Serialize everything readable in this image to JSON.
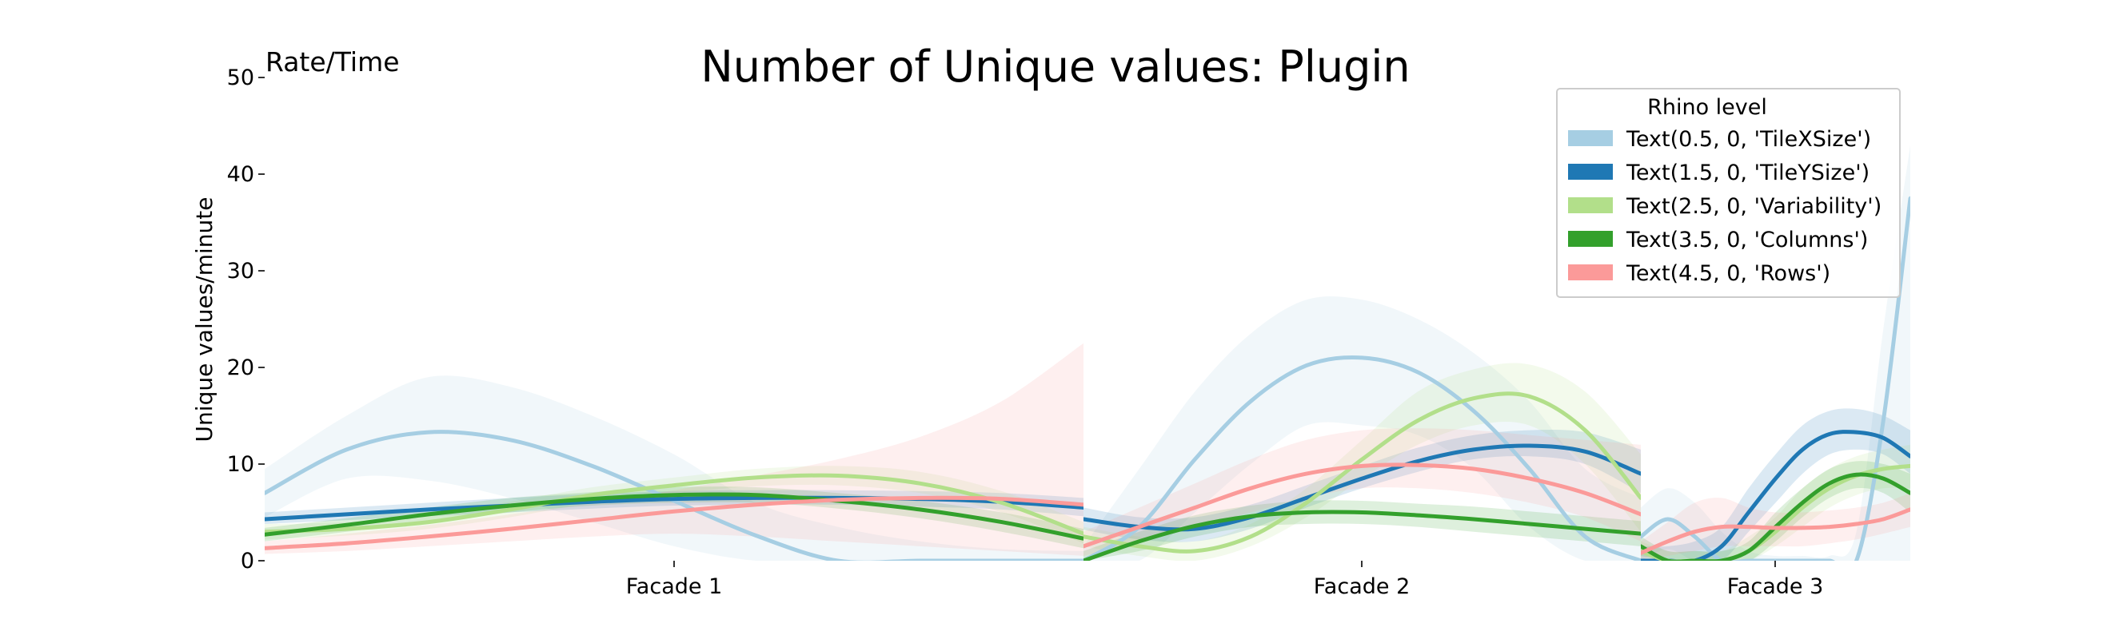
{
  "chart_data": {
    "type": "line",
    "title": "Number of Unique values: Plugin",
    "corner_label": "Rate/Time",
    "xlabel": "",
    "ylabel": "Unique values/minute",
    "ylim": [
      0,
      50
    ],
    "yticks": [
      0,
      10,
      20,
      30,
      40,
      50
    ],
    "x_tick_labels": [
      "Facade 1",
      "Facade 2",
      "Facade 3"
    ],
    "legend": {
      "title": "Rhino level",
      "placement": "top-right"
    },
    "grid": false,
    "note_x_units": "x is position along each facade from 0 (start) to 1 (end)",
    "facades": [
      {
        "name": "Facade 1"
      },
      {
        "name": "Facade 2"
      },
      {
        "name": "Facade 3"
      }
    ],
    "series": [
      {
        "name": "Text(0.5, 0, 'TileXSize')",
        "color": "#a6cee3",
        "segments": [
          {
            "x": [
              0,
              0.1,
              0.2,
              0.3,
              0.4,
              0.5,
              0.6,
              0.7,
              0.8,
              0.9,
              1.0
            ],
            "y": [
              7,
              11.5,
              13.3,
              12.5,
              9.8,
              6.2,
              2.6,
              0,
              0,
              0,
              0
            ],
            "lo": [
              4.5,
              8.5,
              8.3,
              6.5,
              4,
              1.5,
              0,
              0,
              0,
              0,
              0
            ],
            "hi": [
              9.5,
              15,
              19,
              18,
              15,
              11,
              6,
              3.5,
              2,
              1.2,
              1
            ]
          },
          {
            "x": [
              0,
              0.1,
              0.2,
              0.3,
              0.4,
              0.5,
              0.6,
              0.7,
              0.8,
              0.9,
              1.0
            ],
            "y": [
              0,
              3.5,
              10.5,
              16.5,
              20.2,
              21,
              19.5,
              15.5,
              9.5,
              2.5,
              0
            ],
            "lo": [
              0,
              0,
              5,
              10,
              14,
              14,
              13,
              9.5,
              3.5,
              0,
              0
            ],
            "hi": [
              1.5,
              9.5,
              17.5,
              23.5,
              27,
              27,
              25,
              21.5,
              16.5,
              9.5,
              6.5
            ]
          },
          {
            "x": [
              0,
              0.1,
              0.2,
              0.3,
              0.4,
              0.5,
              0.6,
              0.7,
              0.8,
              0.9,
              1.0
            ],
            "y": [
              2.5,
              4.3,
              2.5,
              0,
              0,
              0,
              0,
              0,
              0,
              14.5,
              37.5
            ],
            "lo": [
              0,
              1.2,
              0,
              0,
              0,
              0,
              0,
              0,
              0,
              0,
              0
            ],
            "hi": [
              5.5,
              7.5,
              6,
              3,
              1,
              0.5,
              0.5,
              0.5,
              3,
              24,
              43
            ]
          }
        ]
      },
      {
        "name": "Text(1.5, 0, 'TileYSize')",
        "color": "#1f78b4",
        "segments": [
          {
            "x": [
              0,
              0.1,
              0.2,
              0.3,
              0.4,
              0.5,
              0.6,
              0.7,
              0.8,
              0.9,
              1.0
            ],
            "y": [
              4.3,
              4.8,
              5.3,
              5.7,
              6.1,
              6.4,
              6.5,
              6.5,
              6.4,
              6.1,
              5.5
            ],
            "lo": [
              3.8,
              4.2,
              4.6,
              5,
              5.4,
              5.7,
              5.8,
              5.8,
              5.6,
              5.3,
              4.6
            ],
            "hi": [
              5,
              5.5,
              6,
              6.5,
              6.9,
              7.2,
              7.3,
              7.3,
              7.2,
              7,
              6.5
            ]
          },
          {
            "x": [
              0,
              0.1,
              0.2,
              0.3,
              0.4,
              0.5,
              0.6,
              0.7,
              0.8,
              0.9,
              1.0
            ],
            "y": [
              4.3,
              3.5,
              3.3,
              4.5,
              6.5,
              8.5,
              10.3,
              11.5,
              11.9,
              11.3,
              9
            ],
            "lo": [
              3.2,
              2.2,
              2,
              3.3,
              5.5,
              7.5,
              9.2,
              10.5,
              10.8,
              10,
              7
            ],
            "hi": [
              5.5,
              4.5,
              4.5,
              5.8,
              7.8,
              9.8,
              11.7,
              13,
              13.5,
              13.3,
              11.5
            ]
          },
          {
            "x": [
              0,
              0.1,
              0.2,
              0.3,
              0.4,
              0.5,
              0.6,
              0.7,
              0.8,
              0.9,
              1.0
            ],
            "y": [
              0,
              0,
              0,
              1.5,
              5,
              8.5,
              11.5,
              13.1,
              13.3,
              12.7,
              10.8
            ],
            "lo": [
              0,
              0,
              0,
              0,
              3,
              6,
              9,
              11,
              11.5,
              11,
              9
            ],
            "hi": [
              1.5,
              1.5,
              2,
              3.5,
              7.5,
              11,
              14,
              15.5,
              15.7,
              15,
              13.5
            ]
          }
        ]
      },
      {
        "name": "Text(2.5, 0, 'Variability')",
        "color": "#b2df8a",
        "segments": [
          {
            "x": [
              0,
              0.1,
              0.2,
              0.3,
              0.4,
              0.5,
              0.6,
              0.7,
              0.8,
              0.9,
              1.0
            ],
            "y": [
              3,
              3.3,
              4,
              5.3,
              6.8,
              7.8,
              8.6,
              8.8,
              8,
              6,
              2.8
            ],
            "lo": [
              2.2,
              2.6,
              3.3,
              4.5,
              6,
              7,
              7.7,
              7.8,
              7,
              5,
              1.8
            ],
            "hi": [
              3.8,
              4,
              4.8,
              6.1,
              7.6,
              8.6,
              9.5,
              9.8,
              9.2,
              7.2,
              4
            ]
          },
          {
            "x": [
              0,
              0.1,
              0.2,
              0.3,
              0.4,
              0.5,
              0.6,
              0.7,
              0.8,
              0.9,
              1.0
            ],
            "y": [
              2.5,
              1.5,
              1,
              2.5,
              6,
              10.5,
              14.5,
              16.8,
              17,
              13.5,
              6.5
            ],
            "lo": [
              1.5,
              0.5,
              0,
              1.5,
              4.5,
              8.5,
              12,
              14,
              14,
              10,
              3
            ],
            "hi": [
              3.5,
              2.5,
              2,
              3.8,
              7.5,
              12.5,
              17.5,
              19.8,
              20.3,
              17.5,
              11
            ]
          },
          {
            "x": [
              0,
              0.1,
              0.2,
              0.3,
              0.4,
              0.5,
              0.6,
              0.7,
              0.8,
              0.9,
              1.0
            ],
            "y": [
              1,
              0,
              0,
              0,
              1,
              3,
              5.5,
              7.5,
              8.8,
              9.5,
              9.8
            ],
            "lo": [
              0,
              0,
              0,
              0,
              0,
              1.5,
              3.5,
              5.5,
              6.8,
              7.5,
              7.5
            ],
            "hi": [
              2,
              1,
              1,
              1,
              2.5,
              4.5,
              7.5,
              9.5,
              10.8,
              11.5,
              12
            ]
          }
        ]
      },
      {
        "name": "Text(3.5, 0, 'Columns')",
        "color": "#33a02c",
        "segments": [
          {
            "x": [
              0,
              0.1,
              0.2,
              0.3,
              0.4,
              0.5,
              0.6,
              0.7,
              0.8,
              0.9,
              1.0
            ],
            "y": [
              2.7,
              3.7,
              4.8,
              5.7,
              6.4,
              6.8,
              6.8,
              6.2,
              5.3,
              4,
              2.3
            ],
            "lo": [
              2,
              3,
              4,
              5,
              5.7,
              6,
              6,
              5.4,
              4.4,
              3,
              1.3
            ],
            "hi": [
              3.4,
              4.4,
              5.5,
              6.5,
              7.1,
              7.6,
              7.6,
              7,
              6.2,
              5,
              3.3
            ]
          },
          {
            "x": [
              0,
              0.1,
              0.2,
              0.3,
              0.4,
              0.5,
              0.6,
              0.7,
              0.8,
              0.9,
              1.0
            ],
            "y": [
              0,
              2,
              3.6,
              4.6,
              5,
              5,
              4.7,
              4.3,
              3.8,
              3.3,
              2.8
            ],
            "lo": [
              0,
              1,
              2.5,
              3.5,
              3.8,
              3.8,
              3.5,
              3,
              2.5,
              2,
              1.5
            ],
            "hi": [
              1,
              3,
              4.7,
              5.7,
              6.2,
              6.2,
              5.9,
              5.6,
              5.1,
              4.6,
              4.1
            ]
          },
          {
            "x": [
              0,
              0.1,
              0.2,
              0.3,
              0.4,
              0.5,
              0.6,
              0.7,
              0.8,
              0.9,
              1.0
            ],
            "y": [
              1.5,
              0,
              0,
              0,
              1,
              3.5,
              6,
              8,
              8.9,
              8.5,
              7
            ],
            "lo": [
              0.5,
              0,
              0,
              0,
              0,
              2,
              4.5,
              6.5,
              7.5,
              7,
              5
            ],
            "hi": [
              2.5,
              1,
              1,
              1,
              2,
              5,
              7.5,
              9.5,
              10.3,
              10,
              9
            ]
          }
        ]
      },
      {
        "name": "Text(4.5, 0, 'Rows')",
        "color": "#fb9a99",
        "segments": [
          {
            "x": [
              0,
              0.1,
              0.2,
              0.3,
              0.4,
              0.5,
              0.6,
              0.7,
              0.8,
              0.9,
              1.0
            ],
            "y": [
              1.3,
              1.8,
              2.5,
              3.3,
              4.2,
              5.1,
              5.8,
              6.3,
              6.5,
              6.4,
              5.8
            ],
            "lo": [
              0.7,
              1,
              1.5,
              2,
              2.5,
              2.8,
              2.5,
              2,
              1.5,
              1,
              0.5
            ],
            "hi": [
              2,
              2.8,
              3.7,
              4.8,
              6,
              7.3,
              8.8,
              10.5,
              12.8,
              16.5,
              22.5
            ]
          },
          {
            "x": [
              0,
              0.1,
              0.2,
              0.3,
              0.4,
              0.5,
              0.6,
              0.7,
              0.8,
              0.9,
              1.0
            ],
            "y": [
              1.5,
              3.5,
              5.5,
              7.5,
              9,
              9.8,
              9.9,
              9.5,
              8.5,
              7,
              4.8
            ],
            "lo": [
              0.5,
              2,
              3.5,
              5,
              6.5,
              7.5,
              7.5,
              7,
              6,
              4.5,
              2
            ],
            "hi": [
              3,
              5.5,
              8,
              10.5,
              12.5,
              13.5,
              13.7,
              13.5,
              13,
              12.5,
              12
            ]
          },
          {
            "x": [
              0,
              0.1,
              0.2,
              0.3,
              0.4,
              0.5,
              0.6,
              0.7,
              0.8,
              0.9,
              1.0
            ],
            "y": [
              0.8,
              2,
              3,
              3.5,
              3.5,
              3.4,
              3.4,
              3.5,
              3.8,
              4.3,
              5.3
            ],
            "lo": [
              0,
              0.5,
              1,
              1.5,
              1.5,
              1.5,
              1.5,
              1.8,
              2.2,
              2.8,
              3.5
            ],
            "hi": [
              2,
              4,
              6,
              6.5,
              5.5,
              5,
              5,
              5.2,
              5.5,
              6,
              7
            ]
          }
        ]
      }
    ]
  }
}
